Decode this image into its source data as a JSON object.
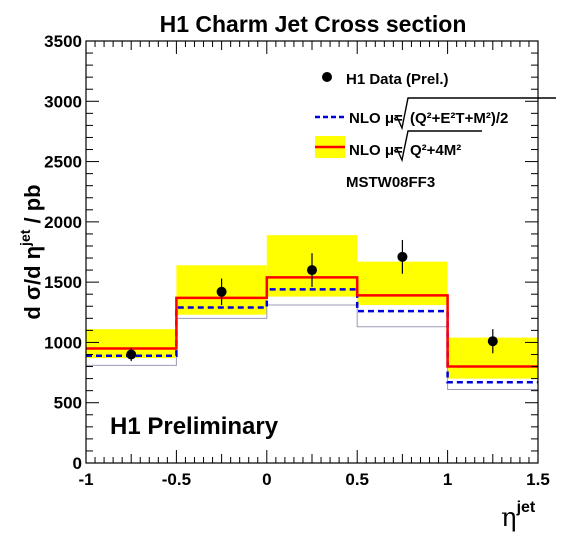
{
  "chart_data": {
    "type": "histogram",
    "title": "H1 Charm Jet Cross section",
    "xlabel": {
      "main": "η",
      "sup": "jet"
    },
    "ylabel": {
      "pre": "d σ/d η",
      "sup": "jet",
      "post": " / pb"
    },
    "xlim": [
      -1,
      1.5
    ],
    "ylim": [
      0,
      3500
    ],
    "x_ticks": [
      -1,
      -0.5,
      0,
      0.5,
      1,
      1.5
    ],
    "x_tick_labels": [
      "-1",
      "-0.5",
      "0",
      "0.5",
      "1",
      "1.5"
    ],
    "y_ticks": [
      0,
      500,
      1000,
      1500,
      2000,
      2500,
      3000,
      3500
    ],
    "y_tick_labels": [
      "0",
      "500",
      "1000",
      "1500",
      "2000",
      "2500",
      "3000",
      "3500"
    ],
    "bin_edges": [
      -1,
      -0.5,
      0,
      0.5,
      1,
      1.5
    ],
    "series": [
      {
        "name": "H1 Data (Prel.)",
        "kind": "points",
        "x": [
          -0.75,
          -0.25,
          0.25,
          0.75,
          1.25
        ],
        "y": [
          900,
          1420,
          1600,
          1710,
          1010
        ],
        "err": [
          55,
          110,
          140,
          140,
          100
        ],
        "color": "#000000"
      },
      {
        "name": "NLO μ=√((Q²+E_T²+M²)/2)",
        "kind": "step",
        "values": [
          890,
          1290,
          1440,
          1260,
          670
        ],
        "color": "#0000dd",
        "dashed": true
      },
      {
        "name": "NLO μ=√(Q²+4M²)",
        "kind": "step_band",
        "values": [
          950,
          1370,
          1540,
          1390,
          800
        ],
        "band_low": [
          870,
          1230,
          1380,
          1310,
          700
        ],
        "band_high": [
          1110,
          1640,
          1890,
          1670,
          1040
        ],
        "lower_line": [
          810,
          1200,
          1310,
          1130,
          610
        ],
        "line_color": "#ff0000",
        "band_color": "#ffff00",
        "lower_line_color": "#9a9ab8"
      }
    ],
    "legend": {
      "data_label": "H1 Data (Prel.)",
      "nlo_prefix": "NLO μ=",
      "nlo1_radicand": "(Q²+E²T+M²)/2",
      "nlo2_radicand": "Q²+4M²",
      "pdf_label": "MSTW08FF3"
    },
    "annotation": "H1 Preliminary"
  }
}
